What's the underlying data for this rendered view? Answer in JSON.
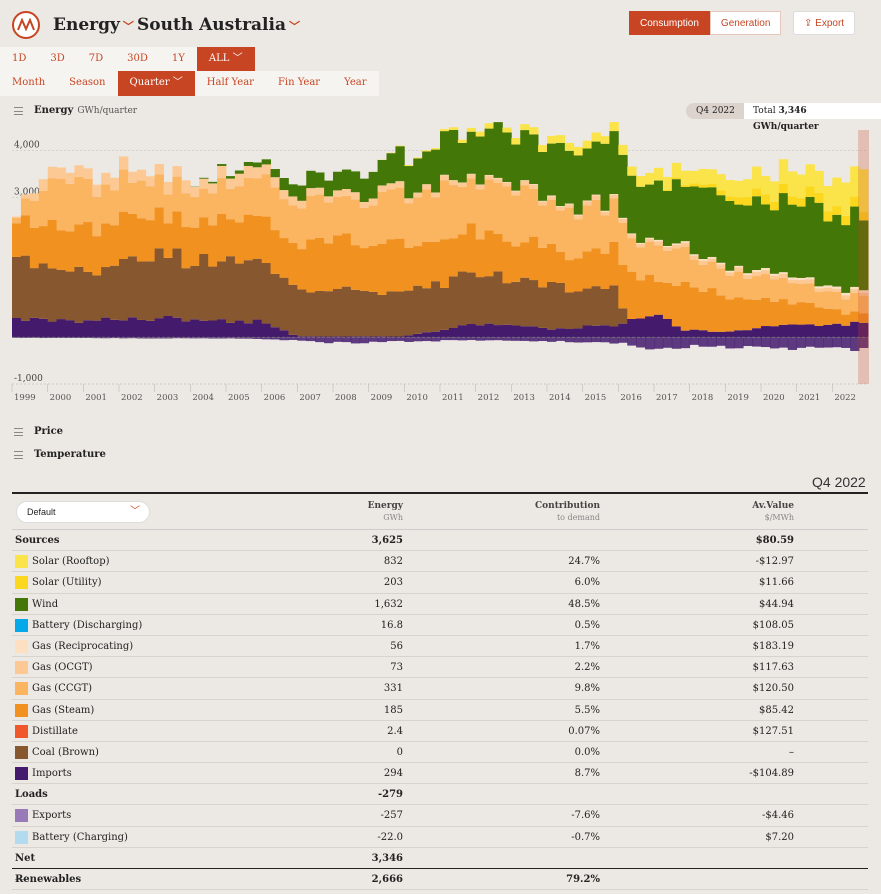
{
  "app": {
    "section": "Energy",
    "region": "South Australia",
    "chevron": "﹀"
  },
  "modes": [
    {
      "label": "Consumption",
      "active": true
    },
    {
      "label": "Generation",
      "active": false
    }
  ],
  "export_label": "Export",
  "ranges": [
    {
      "label": "1D",
      "active": false
    },
    {
      "label": "3D",
      "active": false
    },
    {
      "label": "7D",
      "active": false
    },
    {
      "label": "30D",
      "active": false
    },
    {
      "label": "1Y",
      "active": false
    },
    {
      "label": "ALL ﹀",
      "active": true
    }
  ],
  "intervals": [
    {
      "label": "Month",
      "active": false
    },
    {
      "label": "Season",
      "active": false
    },
    {
      "label": "Quarter ﹀",
      "active": true
    },
    {
      "label": "Half Year",
      "active": false
    },
    {
      "label": "Fin Year",
      "active": false
    },
    {
      "label": "Year",
      "active": false
    }
  ],
  "energy_panel": {
    "title": "Energy",
    "unit": "GWh/quarter",
    "period": "Q4 2022",
    "total_prefix": "Total",
    "total_value": "3,346 GWh/quarter"
  },
  "panels": {
    "price": "Price",
    "temperature": "Temperature"
  },
  "chart_data": {
    "type": "area",
    "title": "Energy",
    "ylabel": "GWh/quarter",
    "ylim": [
      -1000,
      4400
    ],
    "yticks": [
      -1000,
      0,
      1000,
      2000,
      3000,
      4000
    ],
    "ytick_labels": [
      "-1,000",
      "0",
      "1,000",
      "2,000",
      "3,000",
      "4,000"
    ],
    "xticks": [
      "1999",
      "2000",
      "2001",
      "2002",
      "2003",
      "2004",
      "2005",
      "2006",
      "2007",
      "2008",
      "2009",
      "2010",
      "2011",
      "2012",
      "2013",
      "2014",
      "2015",
      "2016",
      "2017",
      "2018",
      "2019",
      "2020",
      "2021",
      "2022"
    ],
    "x_start_year": 1999,
    "quarters": 96,
    "highlight_period": "Q4 2022",
    "series_order": [
      "imports",
      "coal",
      "steam",
      "ccgt",
      "ocgt",
      "recip",
      "wind",
      "utility",
      "rooftop"
    ],
    "colors": {
      "imports": "#441a6d",
      "coal": "#875730",
      "steam": "#f1911f",
      "ccgt": "#fbb45f",
      "ocgt": "#fcc995",
      "recip": "#fde0c2",
      "wind": "#437707",
      "utility": "#fbd81d",
      "rooftop": "#fbe44a",
      "exports": "#977ab7",
      "battery": "#05a8e8"
    },
    "anchors": {
      "imports": [
        [
          1999,
          420
        ],
        [
          2001,
          350
        ],
        [
          2003,
          420
        ],
        [
          2006,
          330
        ],
        [
          2007,
          20
        ],
        [
          2010,
          20
        ],
        [
          2012,
          300
        ],
        [
          2014,
          190
        ],
        [
          2016,
          250
        ],
        [
          2017,
          550
        ],
        [
          2017.75,
          150
        ],
        [
          2019,
          130
        ],
        [
          2021,
          280
        ],
        [
          2022.9,
          294
        ]
      ],
      "coal": [
        [
          1999,
          1300
        ],
        [
          2001,
          1050
        ],
        [
          2003,
          1350
        ],
        [
          2005,
          1300
        ],
        [
          2007,
          1000
        ],
        [
          2010,
          1000
        ],
        [
          2012,
          1100
        ],
        [
          2014,
          900
        ],
        [
          2015.9,
          800
        ],
        [
          2016.3,
          0
        ],
        [
          2023,
          0
        ]
      ],
      "steam": [
        [
          1999,
          800
        ],
        [
          2001,
          1000
        ],
        [
          2003,
          850
        ],
        [
          2005,
          900
        ],
        [
          2007,
          1000
        ],
        [
          2009,
          1050
        ],
        [
          2011,
          950
        ],
        [
          2013,
          900
        ],
        [
          2015,
          700
        ],
        [
          2016.5,
          900
        ],
        [
          2017.5,
          750
        ],
        [
          2018,
          1000
        ],
        [
          2020,
          600
        ],
        [
          2022.9,
          185
        ]
      ],
      "ccgt": [
        [
          1999,
          0
        ],
        [
          2000,
          1000
        ],
        [
          2002,
          800
        ],
        [
          2004,
          650
        ],
        [
          2007,
          900
        ],
        [
          2009,
          950
        ],
        [
          2011,
          1100
        ],
        [
          2013,
          1100
        ],
        [
          2015,
          950
        ],
        [
          2016.5,
          800
        ],
        [
          2018,
          700
        ],
        [
          2020,
          450
        ],
        [
          2022.9,
          331
        ]
      ],
      "ocgt": [
        [
          1999,
          0
        ],
        [
          2000,
          250
        ],
        [
          2005,
          250
        ],
        [
          2008,
          150
        ],
        [
          2011,
          100
        ],
        [
          2016,
          80
        ],
        [
          2020,
          80
        ],
        [
          2022.9,
          73
        ]
      ],
      "recip": [
        [
          1999,
          0
        ],
        [
          2008,
          0
        ],
        [
          2016,
          20
        ],
        [
          2022.9,
          56
        ]
      ],
      "wind": [
        [
          1999,
          0
        ],
        [
          2004,
          0
        ],
        [
          2006,
          100
        ],
        [
          2007,
          300
        ],
        [
          2009,
          500
        ],
        [
          2011,
          900
        ],
        [
          2013,
          1150
        ],
        [
          2015,
          1250
        ],
        [
          2017,
          1300
        ],
        [
          2019,
          1450
        ],
        [
          2021,
          1550
        ],
        [
          2022.9,
          1632
        ]
      ],
      "utility": [
        [
          1999,
          0
        ],
        [
          2017,
          0
        ],
        [
          2018,
          50
        ],
        [
          2019,
          100
        ],
        [
          2020,
          200
        ],
        [
          2021,
          200
        ],
        [
          2022.9,
          203
        ]
      ],
      "rooftop": [
        [
          1999,
          0
        ],
        [
          2009,
          0
        ],
        [
          2011,
          30
        ],
        [
          2012,
          100
        ],
        [
          2014,
          150
        ],
        [
          2016,
          200
        ],
        [
          2018,
          300
        ],
        [
          2020,
          450
        ],
        [
          2022,
          550
        ],
        [
          2022.9,
          832
        ]
      ],
      "exports": [
        [
          1999,
          -10
        ],
        [
          2006,
          -30
        ],
        [
          2008,
          -120
        ],
        [
          2012,
          -60
        ],
        [
          2016,
          -120
        ],
        [
          2017,
          -300
        ],
        [
          2018,
          -180
        ],
        [
          2020,
          -220
        ],
        [
          2022.9,
          -257
        ]
      ]
    }
  },
  "table": {
    "period": "Q4 2022",
    "select_label": "Default",
    "headers": {
      "energy": "Energy",
      "energy_unit": "GWh",
      "contribution": "Contribution",
      "contribution_unit": "to demand",
      "value": "Av.Value",
      "value_unit": "$/MWh"
    },
    "sources_label": "Sources",
    "sources_energy": "3,625",
    "sources_value": "$80.59",
    "sources": [
      {
        "name": "Solar (Rooftop)",
        "color": "#fbe44a",
        "energy": "832",
        "contribution": "24.7%",
        "value": "-$12.97"
      },
      {
        "name": "Solar (Utility)",
        "color": "#fbd81d",
        "energy": "203",
        "contribution": "6.0%",
        "value": "$11.66"
      },
      {
        "name": "Wind",
        "color": "#437707",
        "energy": "1,632",
        "contribution": "48.5%",
        "value": "$44.94"
      },
      {
        "name": "Battery (Discharging)",
        "color": "#05a8e8",
        "energy": "16.8",
        "contribution": "0.5%",
        "value": "$108.05"
      },
      {
        "name": "Gas (Reciprocating)",
        "color": "#fde0c2",
        "energy": "56",
        "contribution": "1.7%",
        "value": "$183.19"
      },
      {
        "name": "Gas (OCGT)",
        "color": "#fcc995",
        "energy": "73",
        "contribution": "2.2%",
        "value": "$117.63"
      },
      {
        "name": "Gas (CCGT)",
        "color": "#fbb45f",
        "energy": "331",
        "contribution": "9.8%",
        "value": "$120.50"
      },
      {
        "name": "Gas (Steam)",
        "color": "#f1911f",
        "energy": "185",
        "contribution": "5.5%",
        "value": "$85.42"
      },
      {
        "name": "Distillate",
        "color": "#f0582c",
        "energy": "2.4",
        "contribution": "0.07%",
        "value": "$127.51"
      },
      {
        "name": "Coal (Brown)",
        "color": "#875730",
        "energy": "0",
        "contribution": "0.0%",
        "value": "–"
      },
      {
        "name": "Imports",
        "color": "#441a6d",
        "energy": "294",
        "contribution": "8.7%",
        "value": "-$104.89"
      }
    ],
    "loads_label": "Loads",
    "loads_energy": "-279",
    "loads": [
      {
        "name": "Exports",
        "color": "#977ab7",
        "energy": "-257",
        "contribution": "-7.6%",
        "value": "-$4.46"
      },
      {
        "name": "Battery (Charging)",
        "color": "#b3dbef",
        "energy": "-22.0",
        "contribution": "-0.7%",
        "value": "$7.20"
      }
    ],
    "net_label": "Net",
    "net_energy": "3,346",
    "renewables_label": "Renewables",
    "renewables_energy": "2,666",
    "renewables_contribution": "79.2%"
  }
}
